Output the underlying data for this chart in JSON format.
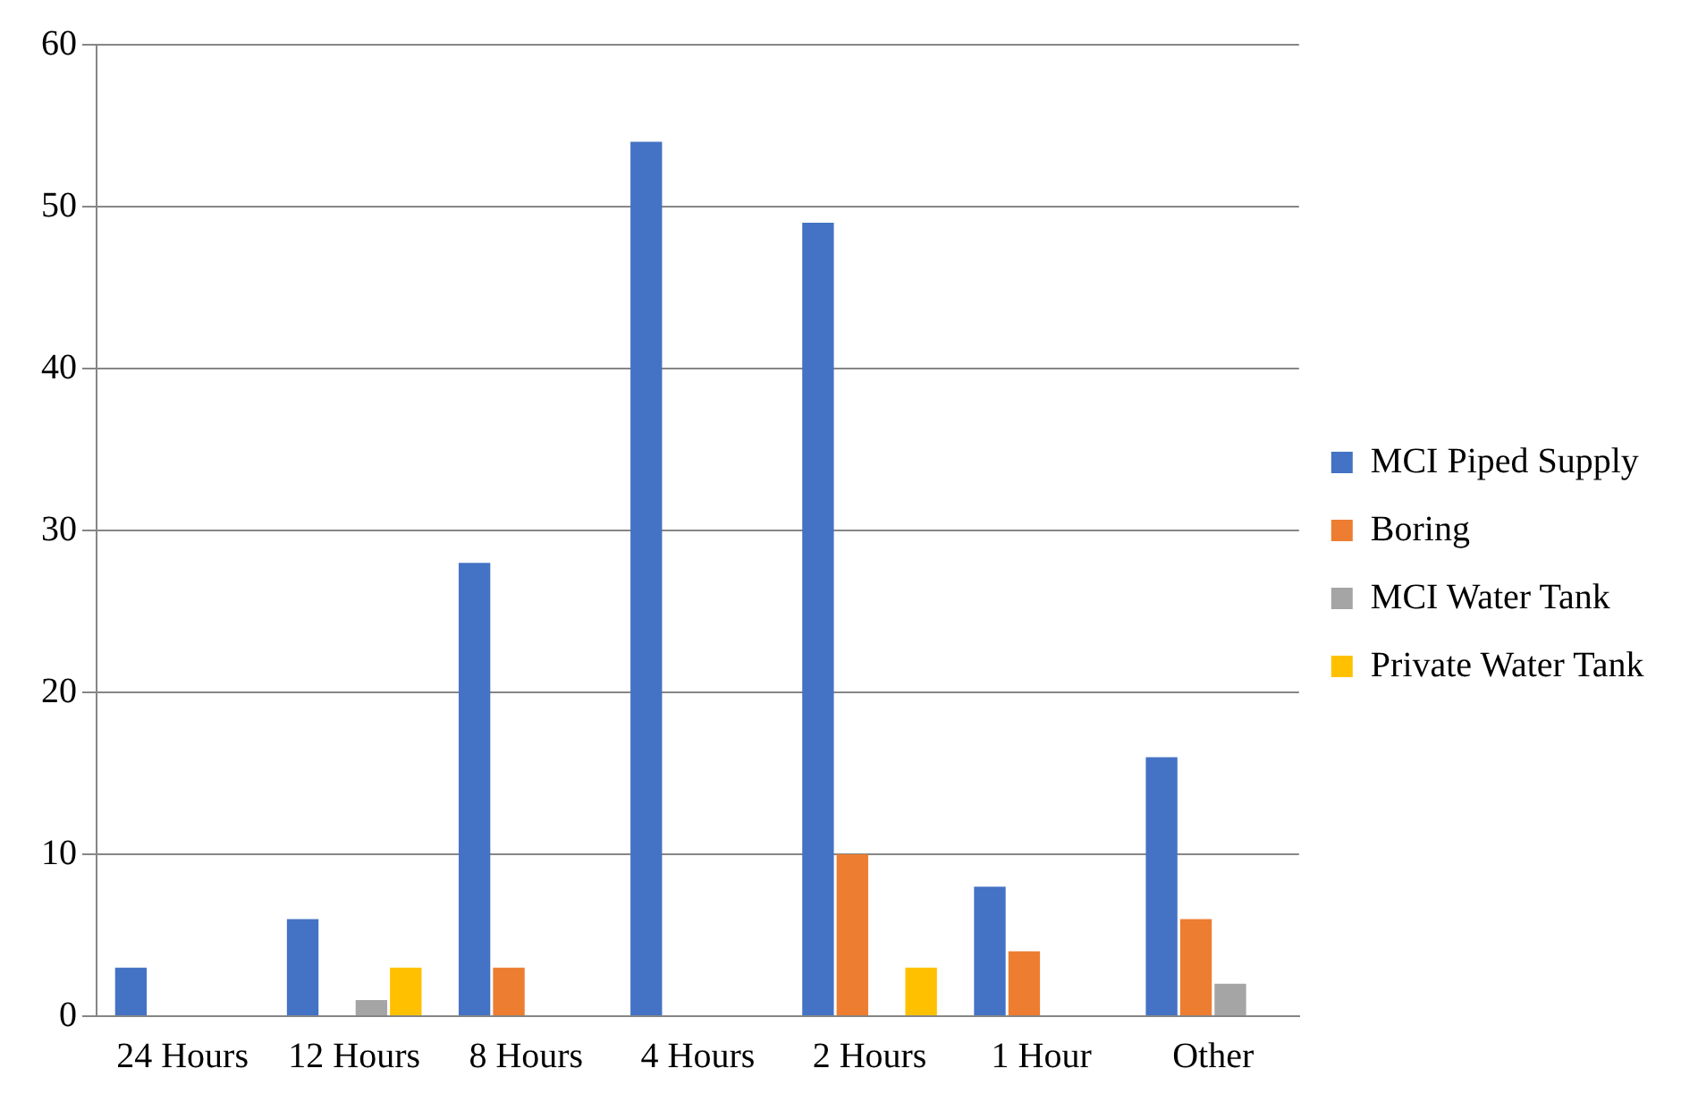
{
  "chart_data": {
    "type": "bar",
    "categories": [
      "24 Hours",
      "12 Hours",
      "8 Hours",
      "4 Hours",
      "2 Hours",
      "1 Hour",
      "Other"
    ],
    "series": [
      {
        "name": "MCI Piped Supply",
        "color": "#4472c4",
        "values": [
          3,
          6,
          28,
          54,
          49,
          8,
          16
        ]
      },
      {
        "name": "Boring",
        "color": "#ed7d31",
        "values": [
          0,
          0,
          3,
          0,
          10,
          4,
          6
        ]
      },
      {
        "name": "MCI Water Tank",
        "color": "#a5a5a5",
        "values": [
          0,
          1,
          0,
          0,
          0,
          0,
          2
        ]
      },
      {
        "name": "Private Water Tank",
        "color": "#ffc000",
        "values": [
          0,
          3,
          0,
          0,
          3,
          0,
          0
        ]
      }
    ],
    "ylim": [
      0,
      60
    ],
    "yticks": [
      0,
      10,
      20,
      30,
      40,
      50,
      60
    ],
    "grid": "y",
    "legend": "right"
  }
}
